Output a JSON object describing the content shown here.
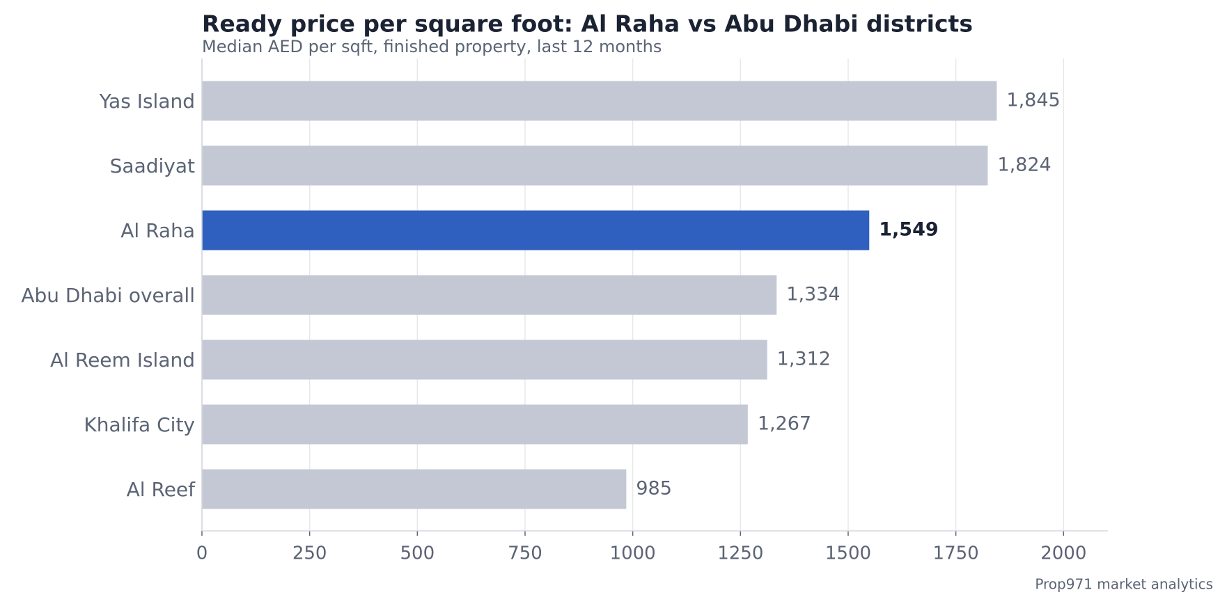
{
  "chart_data": {
    "type": "barh",
    "title": "Ready price per square foot: Al Raha vs Abu Dhabi districts",
    "subtitle": "Median AED per sqft, finished property, last 12 months",
    "footer": "Prop971 market analytics",
    "categories": [
      "Yas Island",
      "Saadiyat",
      "Al Raha",
      "Abu Dhabi overall",
      "Al Reem Island",
      "Khalifa City",
      "Al Reef"
    ],
    "values": [
      1845,
      1824,
      1549,
      1334,
      1312,
      1267,
      985
    ],
    "value_labels": [
      "1,845",
      "1,824",
      "1,549",
      "1,334",
      "1,312",
      "1,267",
      "985"
    ],
    "color": "#c3c8d4",
    "highlight": "Al Raha",
    "highlight_color": "#2f60bf",
    "xlim": [
      0,
      2103
    ],
    "xticks": [
      0,
      250,
      500,
      750,
      1000,
      1250,
      1500,
      1750,
      2000
    ],
    "grid": true
  }
}
